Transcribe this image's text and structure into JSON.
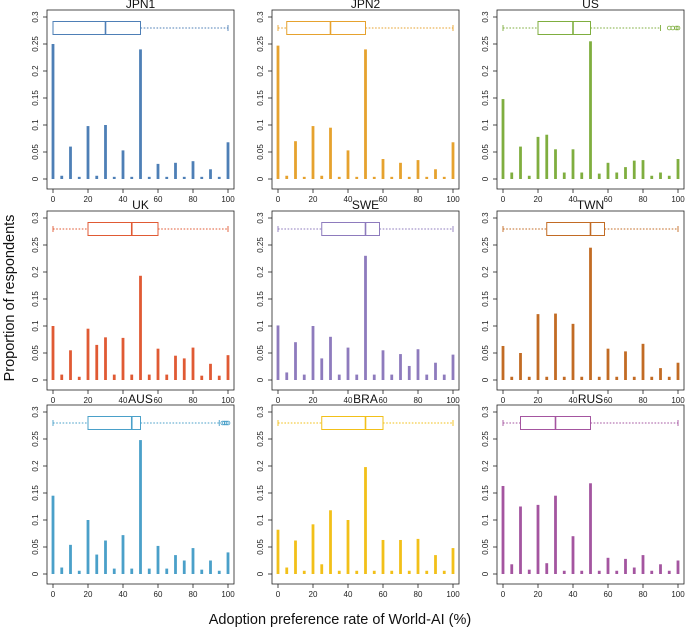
{
  "chart_data": {
    "type": "bar",
    "xlabel": "Adoption preference rate of World-AI (%)",
    "ylabel": "Proportion of respondents",
    "x": [
      0,
      5,
      10,
      15,
      20,
      25,
      30,
      35,
      40,
      45,
      50,
      55,
      60,
      65,
      70,
      75,
      80,
      85,
      90,
      95,
      100
    ],
    "xticks": [
      0,
      20,
      40,
      60,
      80,
      100
    ],
    "xtick_labels": [
      "0",
      "20",
      "40",
      "60",
      "80",
      "100"
    ],
    "ylim": [
      0,
      0.3
    ],
    "yticks": [
      0,
      0.05,
      0.1,
      0.15,
      0.2,
      0.25,
      0.3
    ],
    "ytick_labels": [
      "0",
      "0.05",
      "0.1",
      "0.15",
      "0.2",
      "0.25",
      "0.3"
    ],
    "panels": [
      {
        "name": "JPN1",
        "color": "#4e7fb6",
        "values": [
          0.25,
          0.006,
          0.06,
          0.004,
          0.098,
          0.006,
          0.1,
          0.004,
          0.053,
          0.004,
          0.24,
          0.004,
          0.028,
          0.004,
          0.03,
          0.004,
          0.033,
          0.004,
          0.018,
          0.004,
          0.068
        ],
        "box": {
          "min": 0,
          "q1": 0,
          "median": 30,
          "q3": 50,
          "max": 100,
          "outliers": []
        }
      },
      {
        "name": "JPN2",
        "color": "#e6a22e",
        "values": [
          0.247,
          0.006,
          0.07,
          0.004,
          0.098,
          0.006,
          0.095,
          0.004,
          0.053,
          0.004,
          0.24,
          0.004,
          0.037,
          0.004,
          0.03,
          0.004,
          0.035,
          0.004,
          0.018,
          0.004,
          0.068
        ],
        "box": {
          "min": 0,
          "q1": 5,
          "median": 30,
          "q3": 50,
          "max": 100,
          "outliers": []
        }
      },
      {
        "name": "US",
        "color": "#7fae3f",
        "values": [
          0.148,
          0.012,
          0.06,
          0.006,
          0.078,
          0.082,
          0.055,
          0.012,
          0.055,
          0.012,
          0.255,
          0.01,
          0.03,
          0.012,
          0.022,
          0.034,
          0.035,
          0.006,
          0.012,
          0.006,
          0.037
        ],
        "box": {
          "min": 0,
          "q1": 20,
          "median": 40,
          "q3": 50,
          "max": 90,
          "outliers": [
            95,
            97,
            99,
            100
          ]
        }
      },
      {
        "name": "UK",
        "color": "#e05a34",
        "values": [
          0.1,
          0.01,
          0.055,
          0.006,
          0.095,
          0.065,
          0.079,
          0.01,
          0.078,
          0.01,
          0.193,
          0.01,
          0.058,
          0.01,
          0.045,
          0.04,
          0.06,
          0.008,
          0.03,
          0.008,
          0.046
        ],
        "box": {
          "min": 0,
          "q1": 20,
          "median": 45,
          "q3": 60,
          "max": 100,
          "outliers": []
        }
      },
      {
        "name": "SWE",
        "color": "#8e7bbd",
        "values": [
          0.101,
          0.014,
          0.07,
          0.01,
          0.1,
          0.04,
          0.08,
          0.01,
          0.06,
          0.01,
          0.23,
          0.01,
          0.055,
          0.01,
          0.048,
          0.026,
          0.057,
          0.01,
          0.032,
          0.01,
          0.047
        ],
        "box": {
          "min": 0,
          "q1": 25,
          "median": 50,
          "q3": 58,
          "max": 100,
          "outliers": []
        }
      },
      {
        "name": "TWN",
        "color": "#c26b24",
        "values": [
          0.063,
          0.006,
          0.05,
          0.006,
          0.122,
          0.006,
          0.123,
          0.006,
          0.104,
          0.006,
          0.245,
          0.006,
          0.058,
          0.006,
          0.053,
          0.006,
          0.067,
          0.006,
          0.022,
          0.006,
          0.032
        ],
        "box": {
          "min": 0,
          "q1": 25,
          "median": 50,
          "q3": 58,
          "max": 100,
          "outliers": []
        }
      },
      {
        "name": "AUS",
        "color": "#4aa0c9",
        "values": [
          0.145,
          0.012,
          0.054,
          0.006,
          0.1,
          0.036,
          0.062,
          0.01,
          0.072,
          0.01,
          0.248,
          0.01,
          0.052,
          0.01,
          0.035,
          0.025,
          0.048,
          0.008,
          0.025,
          0.006,
          0.04
        ],
        "box": {
          "min": 0,
          "q1": 20,
          "median": 45,
          "q3": 50,
          "max": 95,
          "outliers": [
            97,
            98,
            99,
            100
          ]
        }
      },
      {
        "name": "BRA",
        "color": "#f2c019",
        "values": [
          0.082,
          0.012,
          0.062,
          0.006,
          0.092,
          0.018,
          0.118,
          0.006,
          0.1,
          0.006,
          0.198,
          0.006,
          0.063,
          0.006,
          0.063,
          0.006,
          0.065,
          0.006,
          0.035,
          0.006,
          0.048
        ],
        "box": {
          "min": 0,
          "q1": 25,
          "median": 50,
          "q3": 60,
          "max": 100,
          "outliers": []
        }
      },
      {
        "name": "RUS",
        "color": "#a455a0",
        "values": [
          0.163,
          0.018,
          0.125,
          0.008,
          0.128,
          0.02,
          0.145,
          0.006,
          0.07,
          0.006,
          0.168,
          0.006,
          0.03,
          0.006,
          0.028,
          0.012,
          0.035,
          0.006,
          0.018,
          0.006,
          0.025
        ],
        "box": {
          "min": 0,
          "q1": 10,
          "median": 30,
          "q3": 50,
          "max": 100,
          "outliers": []
        }
      }
    ]
  }
}
